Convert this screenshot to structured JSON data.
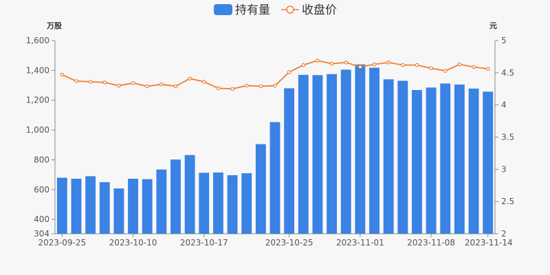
{
  "chart_data": {
    "type": "bar+line",
    "categories": [
      "2023-09-25",
      "2023-09-26",
      "2023-09-27",
      "2023-09-28",
      "2023-10-09",
      "2023-10-10",
      "2023-10-11",
      "2023-10-12",
      "2023-10-13",
      "2023-10-16",
      "2023-10-17",
      "2023-10-18",
      "2023-10-19",
      "2023-10-20",
      "2023-10-23",
      "2023-10-24",
      "2023-10-25",
      "2023-10-26",
      "2023-10-27",
      "2023-10-30",
      "2023-10-31",
      "2023-11-01",
      "2023-11-02",
      "2023-11-03",
      "2023-11-06",
      "2023-11-07",
      "2023-11-08",
      "2023-11-09",
      "2023-11-10",
      "2023-11-13",
      "2023-11-14"
    ],
    "series": [
      {
        "name": "持有量",
        "axis": "left",
        "color": "#3a82e4",
        "values": [
          680,
          673,
          690,
          650,
          608,
          673,
          670,
          735,
          802,
          832,
          713,
          715,
          697,
          710,
          905,
          1053,
          1280,
          1370,
          1368,
          1375,
          1405,
          1440,
          1418,
          1340,
          1330,
          1268,
          1285,
          1312,
          1305,
          1278,
          1257
        ]
      },
      {
        "name": "收盘价",
        "axis": "right",
        "color": "#ed7d31",
        "values": [
          4.47,
          4.37,
          4.36,
          4.35,
          4.3,
          4.34,
          4.29,
          4.32,
          4.29,
          4.41,
          4.36,
          4.26,
          4.25,
          4.3,
          4.29,
          4.3,
          4.51,
          4.62,
          4.69,
          4.64,
          4.66,
          4.59,
          4.63,
          4.66,
          4.62,
          4.62,
          4.57,
          4.53,
          4.63,
          4.59,
          4.56
        ]
      }
    ],
    "x_tick_labels": [
      "2023-09-25",
      "2023-10-10",
      "2023-10-17",
      "2023-10-25",
      "2023-11-01",
      "2023-11-08",
      "2023-11-14"
    ],
    "y_left": {
      "unit": "万股",
      "min": 304,
      "max": 1600,
      "ticks": [
        304,
        400,
        600,
        800,
        1000,
        1200,
        1400,
        1600
      ],
      "tick_labels": [
        "304",
        "400",
        "600",
        "800",
        "1,000",
        "1,200",
        "1,400",
        "1,600"
      ]
    },
    "y_right": {
      "unit": "元",
      "min": 2,
      "max": 5,
      "ticks": [
        2,
        2.5,
        3,
        3.5,
        4,
        4.5,
        5
      ],
      "tick_labels": [
        "2",
        "2.5",
        "3",
        "3.5",
        "4",
        "4.5",
        "5"
      ]
    },
    "legend_position": "top-center",
    "grid": false
  }
}
